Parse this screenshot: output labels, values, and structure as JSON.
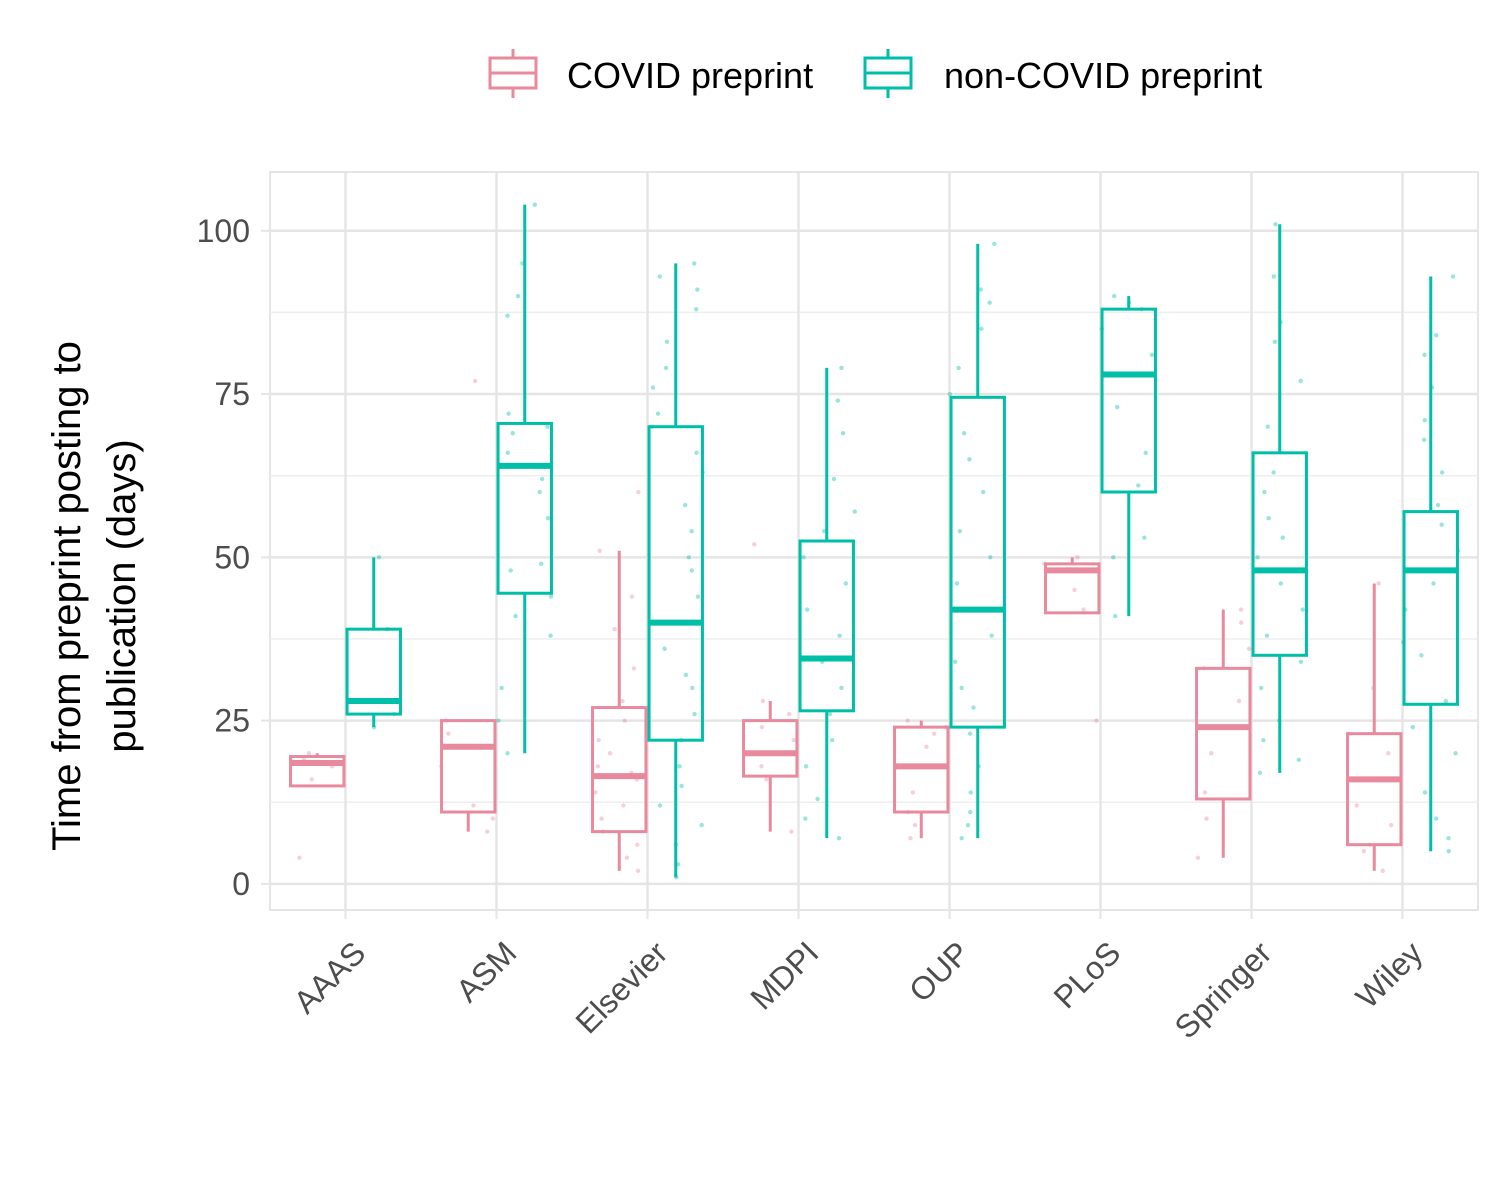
{
  "chart_data": {
    "type": "boxplot",
    "ylabel_lines": [
      "Time from preprint posting to",
      "publication (days)"
    ],
    "xlabel": "",
    "ylim": [
      -4,
      109
    ],
    "yticks": [
      0,
      25,
      50,
      75,
      100
    ],
    "ytick_labels": [
      "0",
      "25",
      "50",
      "75",
      "100"
    ],
    "categories": [
      "AAAS",
      "ASM",
      "Elsevier",
      "MDPI",
      "OUP",
      "PLoS",
      "Springer",
      "Wiley"
    ],
    "legend_position": "top",
    "grid": true,
    "series": [
      {
        "name": "COVID preprint",
        "color": "#E8899E",
        "boxes": [
          {
            "lower": 15,
            "q1": 15,
            "median": 18.5,
            "q3": 19.5,
            "upper": 20
          },
          {
            "lower": 8,
            "q1": 11,
            "median": 21,
            "q3": 25,
            "upper": 25
          },
          {
            "lower": 2,
            "q1": 8,
            "median": 16.5,
            "q3": 27,
            "upper": 51
          },
          {
            "lower": 8,
            "q1": 16.5,
            "median": 20,
            "q3": 25,
            "upper": 28
          },
          {
            "lower": 7,
            "q1": 11,
            "median": 18,
            "q3": 24,
            "upper": 25
          },
          {
            "lower": 41.5,
            "q1": 41.5,
            "median": 48,
            "q3": 49,
            "upper": 50
          },
          {
            "lower": 4,
            "q1": 13,
            "median": 24,
            "q3": 33,
            "upper": 42
          },
          {
            "lower": 2,
            "q1": 6,
            "median": 16,
            "q3": 23,
            "upper": 46
          }
        ],
        "points": [
          [
            4,
            16,
            18,
            19,
            20
          ],
          [
            8,
            10,
            12,
            18,
            21,
            23,
            25,
            77
          ],
          [
            2,
            4,
            6,
            8,
            10,
            12,
            14,
            16,
            17,
            18,
            20,
            22,
            25,
            28,
            33,
            39,
            44,
            51,
            60
          ],
          [
            8,
            16,
            18,
            20,
            22,
            24,
            26,
            28,
            52
          ],
          [
            7,
            9,
            11,
            14,
            18,
            21,
            23,
            24,
            25
          ],
          [
            25,
            42,
            45,
            48,
            49,
            50
          ],
          [
            4,
            10,
            14,
            20,
            24,
            28,
            33,
            36,
            40,
            42
          ],
          [
            2,
            5,
            6,
            9,
            12,
            16,
            20,
            23,
            30,
            46
          ]
        ]
      },
      {
        "name": "non-COVID preprint",
        "color": "#00BFA8",
        "boxes": [
          {
            "lower": 24,
            "q1": 26,
            "median": 28,
            "q3": 39,
            "upper": 50
          },
          {
            "lower": 20,
            "q1": 44.5,
            "median": 64,
            "q3": 70.5,
            "upper": 104
          },
          {
            "lower": 1,
            "q1": 22,
            "median": 40,
            "q3": 70,
            "upper": 95
          },
          {
            "lower": 7,
            "q1": 26.5,
            "median": 34.5,
            "q3": 52.5,
            "upper": 79
          },
          {
            "lower": 7,
            "q1": 24,
            "median": 42,
            "q3": 74.5,
            "upper": 98
          },
          {
            "lower": 41,
            "q1": 60,
            "median": 78,
            "q3": 88,
            "upper": 90
          },
          {
            "lower": 17,
            "q1": 35,
            "median": 48,
            "q3": 66,
            "upper": 101
          },
          {
            "lower": 5,
            "q1": 27.5,
            "median": 48,
            "q3": 57,
            "upper": 93
          }
        ],
        "points": [
          [
            24,
            26,
            28,
            39,
            50
          ],
          [
            20,
            25,
            30,
            38,
            41,
            44,
            48,
            49,
            56,
            60,
            62,
            64,
            66,
            69,
            70,
            72,
            87,
            90,
            95,
            104
          ],
          [
            1,
            3,
            6,
            9,
            12,
            15,
            18,
            22,
            26,
            30,
            32,
            36,
            40,
            44,
            48,
            50,
            54,
            58,
            63,
            66,
            70,
            72,
            76,
            79,
            83,
            88,
            91,
            93,
            95
          ],
          [
            7,
            10,
            13,
            18,
            22,
            26,
            30,
            34,
            38,
            42,
            46,
            50,
            54,
            57,
            62,
            69,
            74,
            79
          ],
          [
            7,
            9,
            11,
            14,
            18,
            23,
            27,
            30,
            34,
            38,
            42,
            46,
            50,
            54,
            60,
            65,
            69,
            75,
            79,
            85,
            89,
            91,
            98
          ],
          [
            41,
            50,
            53,
            61,
            66,
            73,
            78,
            81,
            85,
            88,
            89,
            90
          ],
          [
            17,
            19,
            22,
            25,
            30,
            34,
            38,
            42,
            46,
            48,
            50,
            53,
            56,
            60,
            63,
            70,
            77,
            83,
            86,
            93,
            101
          ],
          [
            5,
            7,
            10,
            14,
            20,
            24,
            28,
            35,
            37,
            42,
            46,
            48,
            51,
            55,
            58,
            63,
            68,
            71,
            76,
            81,
            84,
            93
          ]
        ]
      }
    ]
  }
}
